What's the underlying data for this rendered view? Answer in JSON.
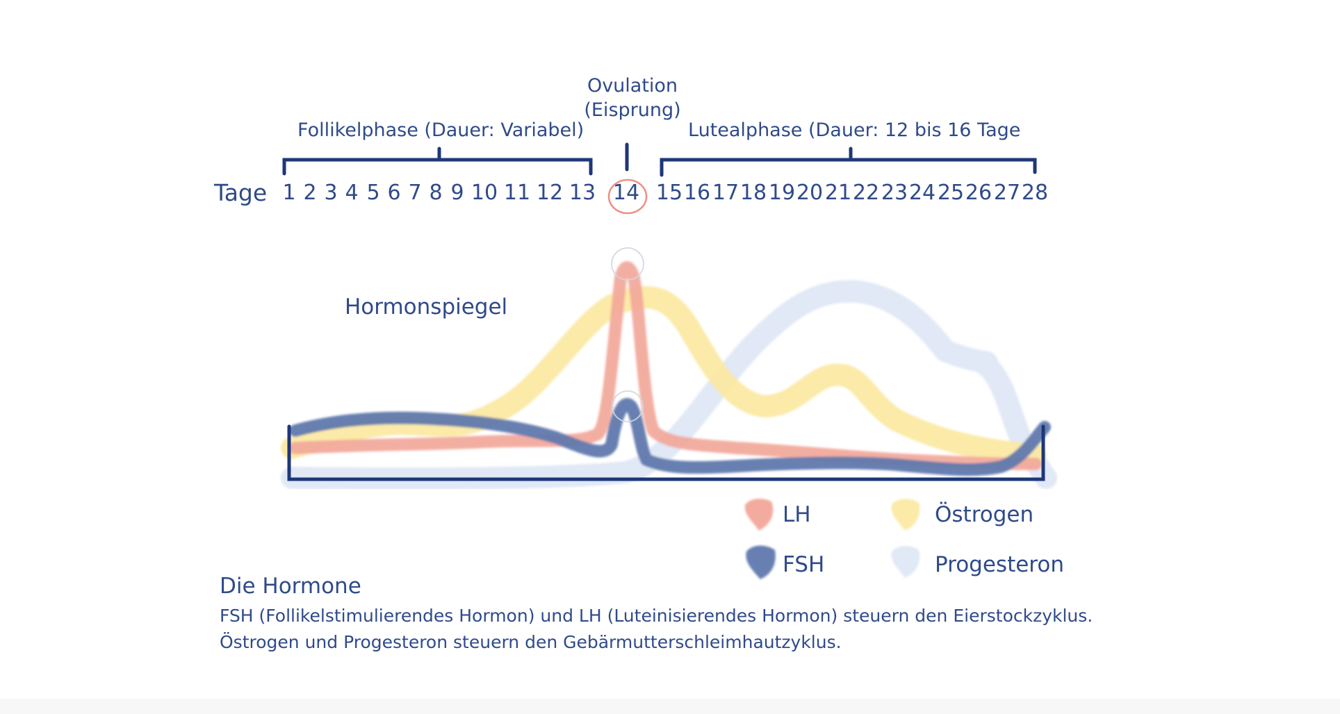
{
  "phases": {
    "follicular": "Follikelphase (Dauer: Variabel)",
    "ovulation_line1": "Ovulation",
    "ovulation_line2": "(Eisprung)",
    "luteal": "Lutealphase (Dauer: 12 bis 16 Tage"
  },
  "days_label": "Tage",
  "days": [
    "1",
    "2",
    "3",
    "4",
    "5",
    "6",
    "7",
    "8",
    "9",
    "10",
    "11",
    "12",
    "13",
    "14",
    "15",
    "16",
    "17",
    "18",
    "19",
    "20",
    "21",
    "22",
    "23",
    "24",
    "25",
    "26",
    "27",
    "28"
  ],
  "chart_title": "Hormonspiegel",
  "legend": {
    "lh": "LH",
    "fsh": "FSH",
    "estrogen": "Östrogen",
    "progesterone": "Progesteron"
  },
  "colors": {
    "lh": "#f2a79a",
    "fsh": "#6079ad",
    "estrogen": "#fbe9a3",
    "progesterone": "#dfe7f5",
    "text": "#2f4a8a",
    "bracket": "#1e3778",
    "ovulation_circle": "#f08e83"
  },
  "section": {
    "title": "Die Hormone",
    "line1": "FSH (Follikelstimulierendes Hormon) und LH (Luteinisierendes Hormon) steuern den Eierstockzyklus.",
    "line2": "Östrogen und Progesteron steuern den Gebärmutterschleimhautzyklus."
  }
}
